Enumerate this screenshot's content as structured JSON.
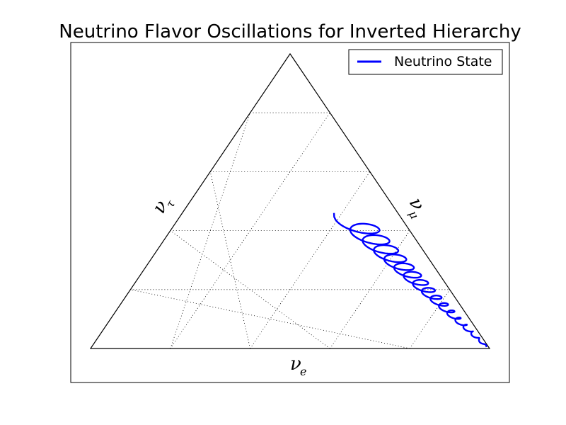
{
  "chart_data": {
    "type": "line",
    "title": "Neutrino Flavor Oscillations for Inverted Hierarchy",
    "axes": [
      {
        "label": "ν",
        "subscript": "e"
      },
      {
        "label": "ν",
        "subscript": "μ"
      },
      {
        "label": "ν",
        "subscript": "τ"
      }
    ],
    "grid": true,
    "legend_position": "top-right",
    "series": [
      {
        "name": "Neutrino State",
        "color": "#0000ff",
        "curve": {
          "outer_start": [
            0.38,
            0.46
          ],
          "inner_start": [
            0.49,
            0.42
          ],
          "end": [
            0.99,
            0.005
          ],
          "amplitude_start": 0.1,
          "amplitude_end": 0.008,
          "cycles": 16
        }
      }
    ]
  }
}
